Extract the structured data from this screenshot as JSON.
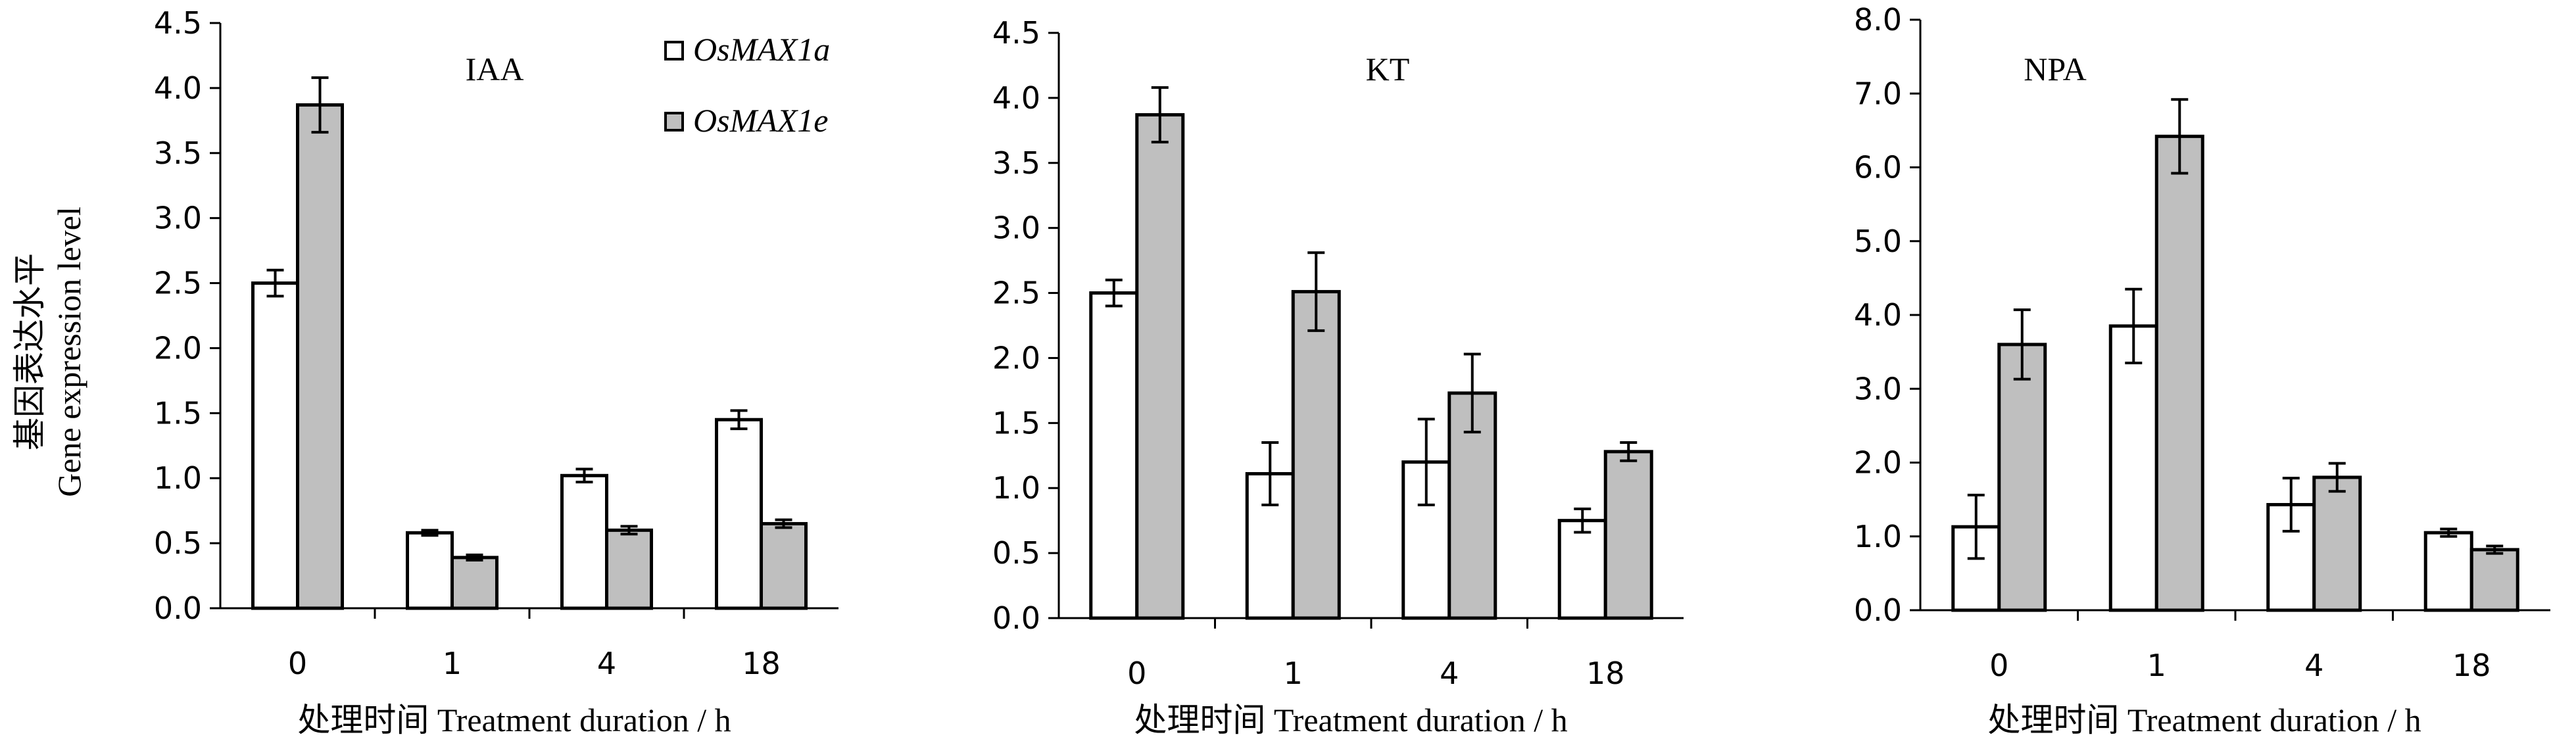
{
  "figure": {
    "ylabel_cn": "基因表达水平",
    "ylabel_en": "Gene expression level",
    "xlabel": "处理时间 Treatment duration / h"
  },
  "colors": {
    "OsMAX1a": "#ffffff",
    "OsMAX1e": "#bfbfbf",
    "outline": "#000000"
  },
  "chart_data": [
    {
      "type": "bar",
      "title": "IAA",
      "categories": [
        "0",
        "1",
        "4",
        "18"
      ],
      "xlabel": "处理时间 Treatment duration / h",
      "ylabel": "基因表达水平 Gene expression level",
      "ylim": [
        0,
        4.5
      ],
      "yticks": [
        "0.0",
        "0.5",
        "1.0",
        "1.5",
        "2.0",
        "2.5",
        "3.0",
        "3.5",
        "4.0",
        "4.5"
      ],
      "legend": "top-right",
      "series": [
        {
          "name": "OsMAX1a",
          "values": [
            2.5,
            0.58,
            1.02,
            1.45
          ],
          "errors": [
            0.1,
            0.02,
            0.05,
            0.07
          ]
        },
        {
          "name": "OsMAX1e",
          "values": [
            3.87,
            0.39,
            0.6,
            0.65
          ],
          "errors": [
            0.21,
            0.02,
            0.03,
            0.03
          ]
        }
      ]
    },
    {
      "type": "bar",
      "title": "KT",
      "categories": [
        "0",
        "1",
        "4",
        "18"
      ],
      "xlabel": "处理时间 Treatment duration / h",
      "ylim": [
        0,
        4.5
      ],
      "yticks": [
        "0.0",
        "0.5",
        "1.0",
        "1.5",
        "2.0",
        "2.5",
        "3.0",
        "3.5",
        "4.0",
        "4.5"
      ],
      "series": [
        {
          "name": "OsMAX1a",
          "values": [
            2.5,
            1.11,
            1.2,
            0.75
          ],
          "errors": [
            0.1,
            0.24,
            0.33,
            0.09
          ]
        },
        {
          "name": "OsMAX1e",
          "values": [
            3.87,
            2.51,
            1.73,
            1.28
          ],
          "errors": [
            0.21,
            0.3,
            0.3,
            0.07
          ]
        }
      ]
    },
    {
      "type": "bar",
      "title": "NPA",
      "categories": [
        "0",
        "1",
        "4",
        "18"
      ],
      "xlabel": "处理时间 Treatment duration / h",
      "ylim": [
        0,
        8
      ],
      "yticks": [
        "0.0",
        "1.0",
        "2.0",
        "3.0",
        "4.0",
        "5.0",
        "6.0",
        "7.0",
        "8.0"
      ],
      "series": [
        {
          "name": "OsMAX1a",
          "values": [
            1.13,
            3.85,
            1.43,
            1.05
          ],
          "errors": [
            0.43,
            0.5,
            0.36,
            0.05
          ]
        },
        {
          "name": "OsMAX1e",
          "values": [
            3.6,
            6.42,
            1.8,
            0.82
          ],
          "errors": [
            0.47,
            0.5,
            0.19,
            0.05
          ]
        }
      ]
    }
  ]
}
